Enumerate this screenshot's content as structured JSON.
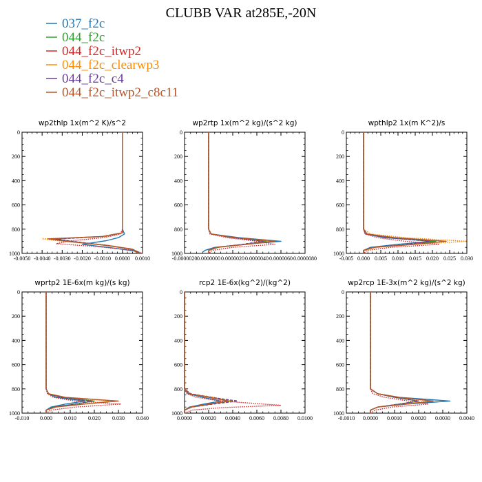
{
  "title": "CLUBB VAR at285E,-20N",
  "colors": {
    "037_f2c": "#1f77b4",
    "044_f2c": "#2ca02c",
    "044_f2c_itwp2": "#d62728",
    "044_f2c_clearwp3": "#ff8c00",
    "044_f2c_c4": "#6a3d9a",
    "044_f2c_itwp2_c8c11": "#b5562a"
  },
  "legend": [
    {
      "name": "037_f2c",
      "color": "#1f77b4"
    },
    {
      "name": "044_f2c",
      "color": "#2ca02c"
    },
    {
      "name": "044_f2c_itwp2",
      "color": "#d62728"
    },
    {
      "name": "044_f2c_clearwp3",
      "color": "#ff8c00"
    },
    {
      "name": "044_f2c_c4",
      "color": "#6a3d9a"
    },
    {
      "name": "044_f2c_itwp2_c8c11",
      "color": "#b5562a"
    }
  ],
  "chart_data": [
    {
      "type": "line",
      "title": "wp2thlp  1x(m^2 K)/s^2",
      "xlim": [
        -0.005,
        0.001
      ],
      "ylim": [
        0,
        1000
      ],
      "y_inverted": true,
      "x_ticks": [
        "-0.0050",
        "-0.0040",
        "-0.0030",
        "-0.0020",
        "-0.0010",
        "0.0000",
        "0.0010"
      ],
      "y_ticks": [
        "0",
        "200",
        "400",
        "600",
        "800",
        "1000"
      ],
      "series": [
        {
          "key": "037_f2c",
          "dash": "solid",
          "x": [
            0,
            0,
            0.0001,
            -0.0002,
            -0.0008,
            -0.002,
            -0.0005,
            0.0006,
            0.0008
          ],
          "y": [
            0,
            800,
            840,
            870,
            895,
            925,
            955,
            980,
            1000
          ]
        },
        {
          "key": "044_f2c",
          "dash": "solid",
          "x": [
            0,
            0,
            0,
            -0.001,
            -0.0035,
            -0.0026,
            -0.0008,
            0.0005,
            0.0009
          ],
          "y": [
            0,
            800,
            830,
            860,
            880,
            900,
            935,
            965,
            1000
          ]
        },
        {
          "key": "044_f2c_itwp2",
          "dash": "dotted",
          "x": [
            0,
            0,
            -0.0001,
            -0.0009,
            -0.0025,
            -0.0033,
            -0.0012,
            0.0006,
            0.001
          ],
          "y": [
            0,
            800,
            840,
            870,
            895,
            920,
            945,
            975,
            1000
          ]
        },
        {
          "key": "044_f2c_clearwp3",
          "dash": "dotted",
          "x": [
            0,
            0,
            0,
            -0.0008,
            -0.004,
            -0.003,
            -0.0008,
            0.0005,
            0.0008
          ],
          "y": [
            0,
            800,
            830,
            860,
            880,
            900,
            930,
            965,
            1000
          ]
        },
        {
          "key": "044_f2c_c4",
          "dash": "dashed",
          "x": [
            0,
            0,
            0,
            -0.0009,
            -0.0033,
            -0.0024,
            -0.0007,
            0.0005,
            0.0009
          ],
          "y": [
            0,
            800,
            830,
            860,
            882,
            902,
            935,
            968,
            1000
          ]
        },
        {
          "key": "044_f2c_itwp2_c8c11",
          "dash": "solid",
          "x": [
            0,
            0,
            0,
            -0.001,
            -0.0037,
            -0.0028,
            -0.001,
            0.0004,
            0.0008
          ],
          "y": [
            0,
            800,
            830,
            860,
            880,
            900,
            930,
            962,
            1000
          ]
        }
      ]
    },
    {
      "type": "line",
      "title": "wp2rtp  1x(m^2 kg)/(s^2 kg)",
      "xlim": [
        -2e-06,
        8e-06
      ],
      "ylim": [
        0,
        1000
      ],
      "y_inverted": true,
      "x_ticks": [
        "-0.0000020",
        "0.0000000",
        "0.0000020",
        "0.0000040",
        "0.0000060",
        "0.0000080"
      ],
      "y_ticks": [
        "0",
        "200",
        "400",
        "600",
        "800",
        "1000"
      ],
      "series": [
        {
          "key": "037_f2c",
          "dash": "solid",
          "x": [
            0,
            0,
            2e-07,
            2.5e-06,
            6e-06,
            3e-06,
            5e-07,
            -3e-07,
            -5e-07
          ],
          "y": [
            0,
            800,
            840,
            870,
            900,
            925,
            950,
            975,
            990
          ]
        },
        {
          "key": "044_f2c",
          "dash": "solid",
          "x": [
            0,
            0,
            2e-07,
            2e-06,
            4.8e-06,
            3e-06,
            8e-07,
            0,
            0
          ],
          "y": [
            0,
            800,
            840,
            870,
            900,
            925,
            950,
            975,
            1000
          ]
        },
        {
          "key": "044_f2c_itwp2",
          "dash": "dotted",
          "x": [
            0,
            0,
            1e-07,
            1.5e-06,
            4e-06,
            5.5e-06,
            2e-06,
            3e-07,
            0
          ],
          "y": [
            0,
            800,
            840,
            870,
            900,
            925,
            950,
            975,
            1000
          ]
        },
        {
          "key": "044_f2c_clearwp3",
          "dash": "dotted",
          "x": [
            0,
            0,
            2e-07,
            2.2e-06,
            5.2e-06,
            3.2e-06,
            8e-07,
            0,
            0
          ],
          "y": [
            0,
            800,
            840,
            870,
            898,
            925,
            950,
            975,
            1000
          ]
        },
        {
          "key": "044_f2c_c4",
          "dash": "dashed",
          "x": [
            0,
            0,
            2e-07,
            2e-06,
            4.5e-06,
            2.8e-06,
            7e-07,
            0,
            0
          ],
          "y": [
            0,
            800,
            840,
            870,
            900,
            925,
            950,
            975,
            1000
          ]
        },
        {
          "key": "044_f2c_itwp2_c8c11",
          "dash": "solid",
          "x": [
            0,
            0,
            2e-07,
            2.2e-06,
            5.5e-06,
            3.2e-06,
            6e-07,
            0,
            0
          ],
          "y": [
            0,
            800,
            840,
            870,
            898,
            925,
            950,
            975,
            1000
          ]
        }
      ]
    },
    {
      "type": "line",
      "title": "wpthlp2  1x(m K^2)/s",
      "xlim": [
        -0.005,
        0.03
      ],
      "ylim": [
        0,
        1000
      ],
      "y_inverted": true,
      "x_ticks": [
        "-0.005",
        "0.000",
        "0.005",
        "0.010",
        "0.015",
        "0.020",
        "0.025",
        "0.030"
      ],
      "y_ticks": [
        "0",
        "200",
        "400",
        "600",
        "800",
        "1000"
      ],
      "series": [
        {
          "key": "037_f2c",
          "dash": "solid",
          "x": [
            0,
            0,
            0.0005,
            0.006,
            0.02,
            0.01,
            0.002,
            0,
            0
          ],
          "y": [
            0,
            800,
            840,
            870,
            900,
            925,
            950,
            975,
            1000
          ]
        },
        {
          "key": "044_f2c",
          "dash": "solid",
          "x": [
            0,
            0,
            0.001,
            0.008,
            0.021,
            0.014,
            0.003,
            0,
            0
          ],
          "y": [
            0,
            800,
            840,
            870,
            900,
            925,
            950,
            975,
            1000
          ]
        },
        {
          "key": "044_f2c_itwp2",
          "dash": "dotted",
          "x": [
            0,
            0,
            0.0005,
            0.004,
            0.012,
            0.022,
            0.008,
            0.001,
            0
          ],
          "y": [
            0,
            800,
            840,
            870,
            900,
            925,
            950,
            975,
            1000
          ]
        },
        {
          "key": "044_f2c_clearwp3",
          "dash": "dotted",
          "x": [
            0,
            0,
            0.002,
            0.012,
            0.03,
            0.015,
            0.004,
            0,
            0
          ],
          "y": [
            0,
            800,
            840,
            870,
            900,
            925,
            950,
            975,
            1000
          ]
        },
        {
          "key": "044_f2c_c4",
          "dash": "dashed",
          "x": [
            0,
            0,
            0.001,
            0.007,
            0.019,
            0.013,
            0.003,
            0,
            0
          ],
          "y": [
            0,
            800,
            840,
            870,
            900,
            925,
            950,
            975,
            1000
          ]
        },
        {
          "key": "044_f2c_itwp2_c8c11",
          "dash": "solid",
          "x": [
            0,
            0,
            0.001,
            0.009,
            0.024,
            0.015,
            0.003,
            0,
            0
          ],
          "y": [
            0,
            800,
            840,
            870,
            900,
            925,
            950,
            975,
            1000
          ]
        }
      ]
    },
    {
      "type": "line",
      "title": "wprtp2  1E-6x(m kg)/(s kg)",
      "xlim": [
        -0.01,
        0.04
      ],
      "ylim": [
        0,
        1000
      ],
      "y_inverted": true,
      "x_ticks": [
        "-0.010",
        "0.000",
        "0.010",
        "0.020",
        "0.030",
        "0.040"
      ],
      "y_ticks": [
        "0",
        "200",
        "400",
        "600",
        "800",
        "1000"
      ],
      "series": [
        {
          "key": "037_f2c",
          "dash": "solid",
          "x": [
            0,
            0,
            0.001,
            0.004,
            0.016,
            0.008,
            0.002,
            0,
            0
          ],
          "y": [
            0,
            800,
            840,
            870,
            900,
            925,
            950,
            975,
            1000
          ]
        },
        {
          "key": "044_f2c",
          "dash": "solid",
          "x": [
            0,
            0,
            0.001,
            0.006,
            0.02,
            0.012,
            0.003,
            0,
            0
          ],
          "y": [
            0,
            800,
            840,
            870,
            900,
            925,
            950,
            975,
            1000
          ]
        },
        {
          "key": "044_f2c_itwp2",
          "dash": "dotted",
          "x": [
            0,
            0,
            0.0005,
            0.003,
            0.012,
            0.031,
            0.012,
            0.002,
            0
          ],
          "y": [
            0,
            800,
            840,
            870,
            900,
            925,
            950,
            975,
            1000
          ]
        },
        {
          "key": "044_f2c_clearwp3",
          "dash": "dotted",
          "x": [
            0,
            0,
            0.001,
            0.008,
            0.026,
            0.015,
            0.004,
            0,
            0
          ],
          "y": [
            0,
            800,
            840,
            870,
            900,
            925,
            950,
            975,
            1000
          ]
        },
        {
          "key": "044_f2c_c4",
          "dash": "dashed",
          "x": [
            0,
            0,
            0.001,
            0.006,
            0.019,
            0.012,
            0.003,
            0,
            0
          ],
          "y": [
            0,
            800,
            840,
            870,
            900,
            925,
            950,
            975,
            1000
          ]
        },
        {
          "key": "044_f2c_itwp2_c8c11",
          "dash": "solid",
          "x": [
            0,
            0,
            0.001,
            0.008,
            0.03,
            0.016,
            0.004,
            0,
            0
          ],
          "y": [
            0,
            800,
            840,
            870,
            900,
            925,
            950,
            975,
            1000
          ]
        }
      ]
    },
    {
      "type": "line",
      "title": "rcp2  1E-6x(kg^2)/(kg^2)",
      "xlim": [
        0,
        0.01
      ],
      "ylim": [
        0,
        1000
      ],
      "y_inverted": true,
      "x_ticks": [
        "0.0000",
        "0.0020",
        "0.0040",
        "0.0060",
        "0.0080",
        "0.0100"
      ],
      "y_ticks": [
        "0",
        "200",
        "400",
        "600",
        "800",
        "1000"
      ],
      "series": [
        {
          "key": "037_f2c",
          "dash": "solid",
          "x": [
            0,
            0,
            0.0003,
            0.0015,
            0.003,
            0.0016,
            0.0004,
            0,
            0
          ],
          "y": [
            0,
            800,
            840,
            870,
            900,
            925,
            950,
            975,
            1000
          ]
        },
        {
          "key": "044_f2c",
          "dash": "solid",
          "x": [
            0,
            0,
            0.0004,
            0.002,
            0.0038,
            0.0022,
            0.0006,
            0,
            0
          ],
          "y": [
            0,
            800,
            840,
            870,
            900,
            925,
            950,
            975,
            1000
          ]
        },
        {
          "key": "044_f2c_itwp2",
          "dash": "dotted",
          "x": [
            0,
            0,
            0.0002,
            0.001,
            0.003,
            0.008,
            0.003,
            0.0006,
            0
          ],
          "y": [
            0,
            800,
            840,
            870,
            900,
            935,
            955,
            975,
            1000
          ]
        },
        {
          "key": "044_f2c_clearwp3",
          "dash": "dotted",
          "x": [
            0,
            0,
            0.0005,
            0.0025,
            0.004,
            0.002,
            0.0005,
            0,
            0
          ],
          "y": [
            0,
            800,
            840,
            870,
            900,
            925,
            950,
            975,
            1000
          ]
        },
        {
          "key": "044_f2c_c4",
          "dash": "dashed",
          "x": [
            0,
            0,
            0.0005,
            0.0022,
            0.0044,
            0.0024,
            0.0006,
            0,
            0
          ],
          "y": [
            0,
            800,
            840,
            870,
            900,
            925,
            950,
            975,
            1000
          ]
        },
        {
          "key": "044_f2c_itwp2_c8c11",
          "dash": "solid",
          "x": [
            0,
            0,
            0.0004,
            0.002,
            0.0036,
            0.002,
            0.0005,
            0,
            0
          ],
          "y": [
            0,
            800,
            840,
            870,
            900,
            925,
            950,
            975,
            1000
          ]
        }
      ]
    },
    {
      "type": "line",
      "title": "wp2rcp  1E-3x(m^2 kg)/(s^2 kg)",
      "xlim": [
        -0.001,
        0.004
      ],
      "ylim": [
        0,
        1000
      ],
      "y_inverted": true,
      "x_ticks": [
        "-0.0010",
        "0.0000",
        "0.0010",
        "0.0020",
        "0.0030",
        "0.0040"
      ],
      "y_ticks": [
        "0",
        "200",
        "400",
        "600",
        "800",
        "1000"
      ],
      "series": [
        {
          "key": "037_f2c",
          "dash": "solid",
          "x": [
            0,
            0,
            0.0003,
            0.0012,
            0.0033,
            0.0015,
            0.0003,
            0,
            0
          ],
          "y": [
            0,
            800,
            840,
            870,
            900,
            925,
            950,
            975,
            1000
          ]
        },
        {
          "key": "044_f2c",
          "dash": "solid",
          "x": [
            0,
            0,
            0.0003,
            0.001,
            0.002,
            0.0012,
            0.0003,
            0,
            0
          ],
          "y": [
            0,
            800,
            840,
            870,
            900,
            925,
            950,
            975,
            1000
          ]
        },
        {
          "key": "044_f2c_itwp2",
          "dash": "dotted",
          "x": [
            0,
            0,
            0.0001,
            0.0006,
            0.0016,
            0.0024,
            0.0009,
            0.0002,
            0
          ],
          "y": [
            0,
            800,
            840,
            870,
            900,
            925,
            950,
            975,
            1000
          ]
        },
        {
          "key": "044_f2c_clearwp3",
          "dash": "dotted",
          "x": [
            0,
            0,
            0.0003,
            0.0012,
            0.0024,
            0.0014,
            0.0003,
            0,
            0
          ],
          "y": [
            0,
            800,
            840,
            870,
            900,
            925,
            950,
            975,
            1000
          ]
        },
        {
          "key": "044_f2c_c4",
          "dash": "dashed",
          "x": [
            0,
            0,
            0.0003,
            0.001,
            0.002,
            0.0012,
            0.0003,
            0,
            0
          ],
          "y": [
            0,
            800,
            840,
            870,
            900,
            925,
            950,
            975,
            1000
          ]
        },
        {
          "key": "044_f2c_itwp2_c8c11",
          "dash": "solid",
          "x": [
            0,
            0,
            0.0003,
            0.0012,
            0.0026,
            0.0015,
            0.0003,
            0,
            0
          ],
          "y": [
            0,
            800,
            840,
            870,
            900,
            925,
            950,
            975,
            1000
          ]
        }
      ]
    }
  ]
}
